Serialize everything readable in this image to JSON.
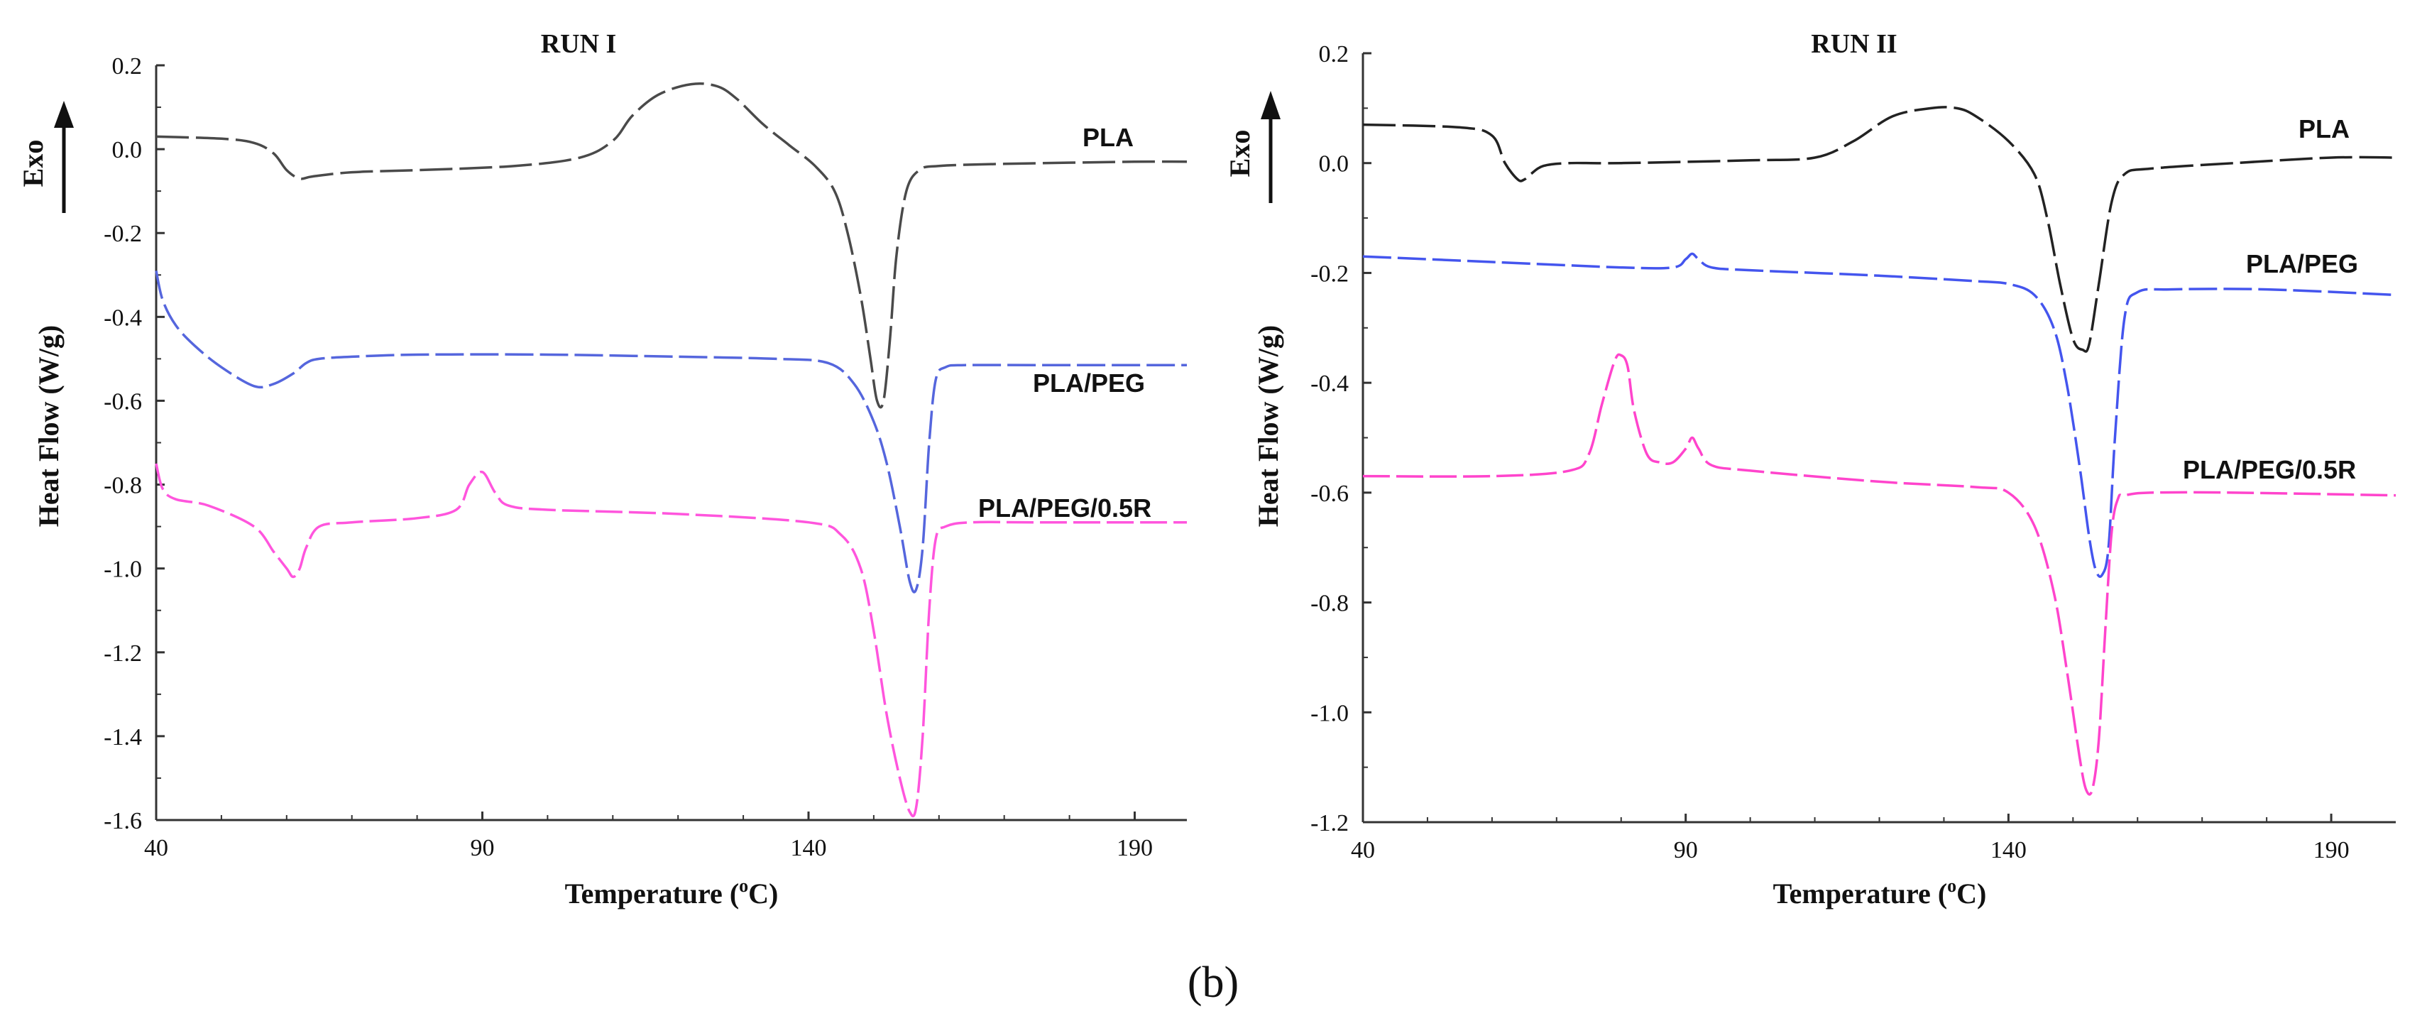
{
  "panel_label": "(b)",
  "chart_data": [
    {
      "type": "line",
      "title": "RUN I",
      "xlabel": "Temperature (oC)",
      "xlabel_main": "Temperature (",
      "xlabel_unit_sup": "o",
      "xlabel_unit_tail": "C)",
      "ylabel": "Heat Flow  (W/g)",
      "exo_label": "Exo",
      "xlim": [
        40,
        198
      ],
      "ylim": [
        -1.6,
        0.2
      ],
      "xticks": [
        40,
        90,
        140,
        190
      ],
      "xtick_labels": [
        "40",
        "90",
        "140",
        "190"
      ],
      "yticks": [
        0.2,
        0.0,
        -0.2,
        -0.4,
        -0.6,
        -0.8,
        -1.0,
        -1.2,
        -1.4,
        -1.6
      ],
      "ytick_labels": [
        "0.2",
        "0.0",
        "-0.2",
        "-0.4",
        "-0.6",
        "-0.8",
        "-1.0",
        "-1.2",
        "-1.4",
        "-1.6"
      ],
      "grid": false,
      "series": [
        {
          "name": "PLA",
          "color": "#4a4a4a",
          "x": [
            40,
            50,
            55,
            58,
            60,
            62,
            64,
            70,
            80,
            95,
            105,
            110,
            113,
            117,
            122,
            126,
            129,
            133,
            137,
            141,
            144,
            146,
            148,
            149.5,
            150.5,
            151.5,
            152.5,
            153.5,
            155,
            157,
            160,
            170,
            190,
            198
          ],
          "y": [
            0.03,
            0.025,
            0.015,
            -0.01,
            -0.05,
            -0.07,
            -0.065,
            -0.055,
            -0.05,
            -0.04,
            -0.02,
            0.02,
            0.08,
            0.13,
            0.155,
            0.15,
            0.12,
            0.06,
            0.01,
            -0.04,
            -0.1,
            -0.2,
            -0.35,
            -0.5,
            -0.6,
            -0.6,
            -0.45,
            -0.25,
            -0.1,
            -0.05,
            -0.04,
            -0.035,
            -0.03,
            -0.03
          ]
        },
        {
          "name": "PLA/PEG",
          "color": "#5566dd",
          "x": [
            40,
            41,
            43,
            46,
            50,
            55,
            58,
            61,
            63,
            65,
            70,
            80,
            100,
            120,
            135,
            143,
            147,
            150,
            152,
            154,
            155.5,
            156.5,
            157.5,
            158.5,
            159.5,
            161,
            164,
            175,
            198
          ],
          "y": [
            -0.29,
            -0.36,
            -0.42,
            -0.47,
            -0.52,
            -0.565,
            -0.56,
            -0.535,
            -0.51,
            -0.5,
            -0.495,
            -0.49,
            -0.49,
            -0.495,
            -0.5,
            -0.51,
            -0.56,
            -0.65,
            -0.75,
            -0.9,
            -1.03,
            -1.05,
            -0.95,
            -0.7,
            -0.55,
            -0.52,
            -0.515,
            -0.515,
            -0.515
          ]
        },
        {
          "name": "PLA/PEG/0.5R",
          "color": "#ff55dd",
          "x": [
            40,
            41,
            43,
            48,
            55,
            58,
            60,
            61,
            62,
            63,
            65,
            70,
            80,
            86,
            88,
            90,
            92,
            94,
            100,
            120,
            140,
            145,
            148,
            150,
            152,
            154,
            155.5,
            156.5,
            157.5,
            158.5,
            159.5,
            161,
            165,
            175,
            198
          ],
          "y": [
            -0.75,
            -0.81,
            -0.835,
            -0.85,
            -0.9,
            -0.96,
            -1.0,
            -1.02,
            -1.0,
            -0.95,
            -0.9,
            -0.89,
            -0.88,
            -0.86,
            -0.8,
            -0.77,
            -0.82,
            -0.85,
            -0.86,
            -0.87,
            -0.89,
            -0.92,
            -1.0,
            -1.15,
            -1.35,
            -1.5,
            -1.58,
            -1.57,
            -1.4,
            -1.1,
            -0.93,
            -0.9,
            -0.89,
            -0.89,
            -0.89
          ]
        }
      ]
    },
    {
      "type": "line",
      "title": "RUN II",
      "xlabel": "Temperature (oC)",
      "xlabel_main": "Temperature (",
      "xlabel_unit_sup": "o",
      "xlabel_unit_tail": "C)",
      "ylabel": "Heat Flow  (W/g)",
      "exo_label": "Exo",
      "xlim": [
        40,
        200
      ],
      "ylim": [
        -1.2,
        0.2
      ],
      "xticks": [
        40,
        90,
        140,
        190
      ],
      "xtick_labels": [
        "40",
        "90",
        "140",
        "190"
      ],
      "yticks": [
        0.2,
        0.0,
        -0.2,
        -0.4,
        -0.6,
        -0.8,
        -1.0,
        -1.2
      ],
      "ytick_labels": [
        "0.2",
        "0.0",
        "-0.2",
        "-0.4",
        "-0.6",
        "-0.8",
        "-1.0",
        "-1.2"
      ],
      "grid": false,
      "series": [
        {
          "name": "PLA",
          "color": "#222222",
          "x": [
            40,
            55,
            60,
            62,
            64,
            65,
            66,
            68,
            72,
            80,
            100,
            110,
            116,
            122,
            128,
            132,
            135,
            140,
            144,
            146,
            148,
            150,
            151.5,
            152.5,
            154,
            156,
            158,
            162,
            175,
            190,
            200
          ],
          "y": [
            0.07,
            0.065,
            0.05,
            0.0,
            -0.03,
            -0.03,
            -0.02,
            -0.005,
            0.0,
            0.0,
            0.005,
            0.01,
            0.04,
            0.085,
            0.1,
            0.1,
            0.085,
            0.04,
            -0.02,
            -0.1,
            -0.22,
            -0.32,
            -0.34,
            -0.33,
            -0.22,
            -0.07,
            -0.02,
            -0.01,
            0.0,
            0.01,
            0.01
          ]
        },
        {
          "name": "PLA/PEG",
          "color": "#4455ee",
          "x": [
            40,
            60,
            80,
            88,
            90,
            91,
            92,
            94,
            100,
            120,
            135,
            140,
            144,
            147,
            149,
            151,
            152.5,
            153.5,
            154.5,
            155.5,
            156.5,
            158,
            160,
            165,
            180,
            200
          ],
          "y": [
            -0.17,
            -0.18,
            -0.19,
            -0.19,
            -0.175,
            -0.165,
            -0.175,
            -0.19,
            -0.195,
            -0.205,
            -0.215,
            -0.22,
            -0.24,
            -0.3,
            -0.4,
            -0.55,
            -0.68,
            -0.74,
            -0.75,
            -0.7,
            -0.5,
            -0.28,
            -0.235,
            -0.23,
            -0.23,
            -0.24
          ]
        },
        {
          "name": "PLA/PEG/0.5R",
          "color": "#ff44cc",
          "x": [
            40,
            60,
            72,
            75,
            77,
            79,
            80,
            81,
            82,
            84,
            86,
            88,
            90,
            91,
            92,
            94,
            100,
            120,
            135,
            140,
            144,
            147,
            149,
            151,
            152,
            153,
            154,
            155,
            156,
            157,
            158,
            162,
            175,
            200
          ],
          "y": [
            -0.57,
            -0.57,
            -0.56,
            -0.53,
            -0.44,
            -0.36,
            -0.35,
            -0.37,
            -0.45,
            -0.53,
            -0.545,
            -0.545,
            -0.52,
            -0.5,
            -0.52,
            -0.55,
            -0.56,
            -0.58,
            -0.59,
            -0.6,
            -0.66,
            -0.78,
            -0.92,
            -1.08,
            -1.14,
            -1.14,
            -1.05,
            -0.85,
            -0.67,
            -0.61,
            -0.605,
            -0.6,
            -0.6,
            -0.605
          ]
        }
      ]
    }
  ]
}
